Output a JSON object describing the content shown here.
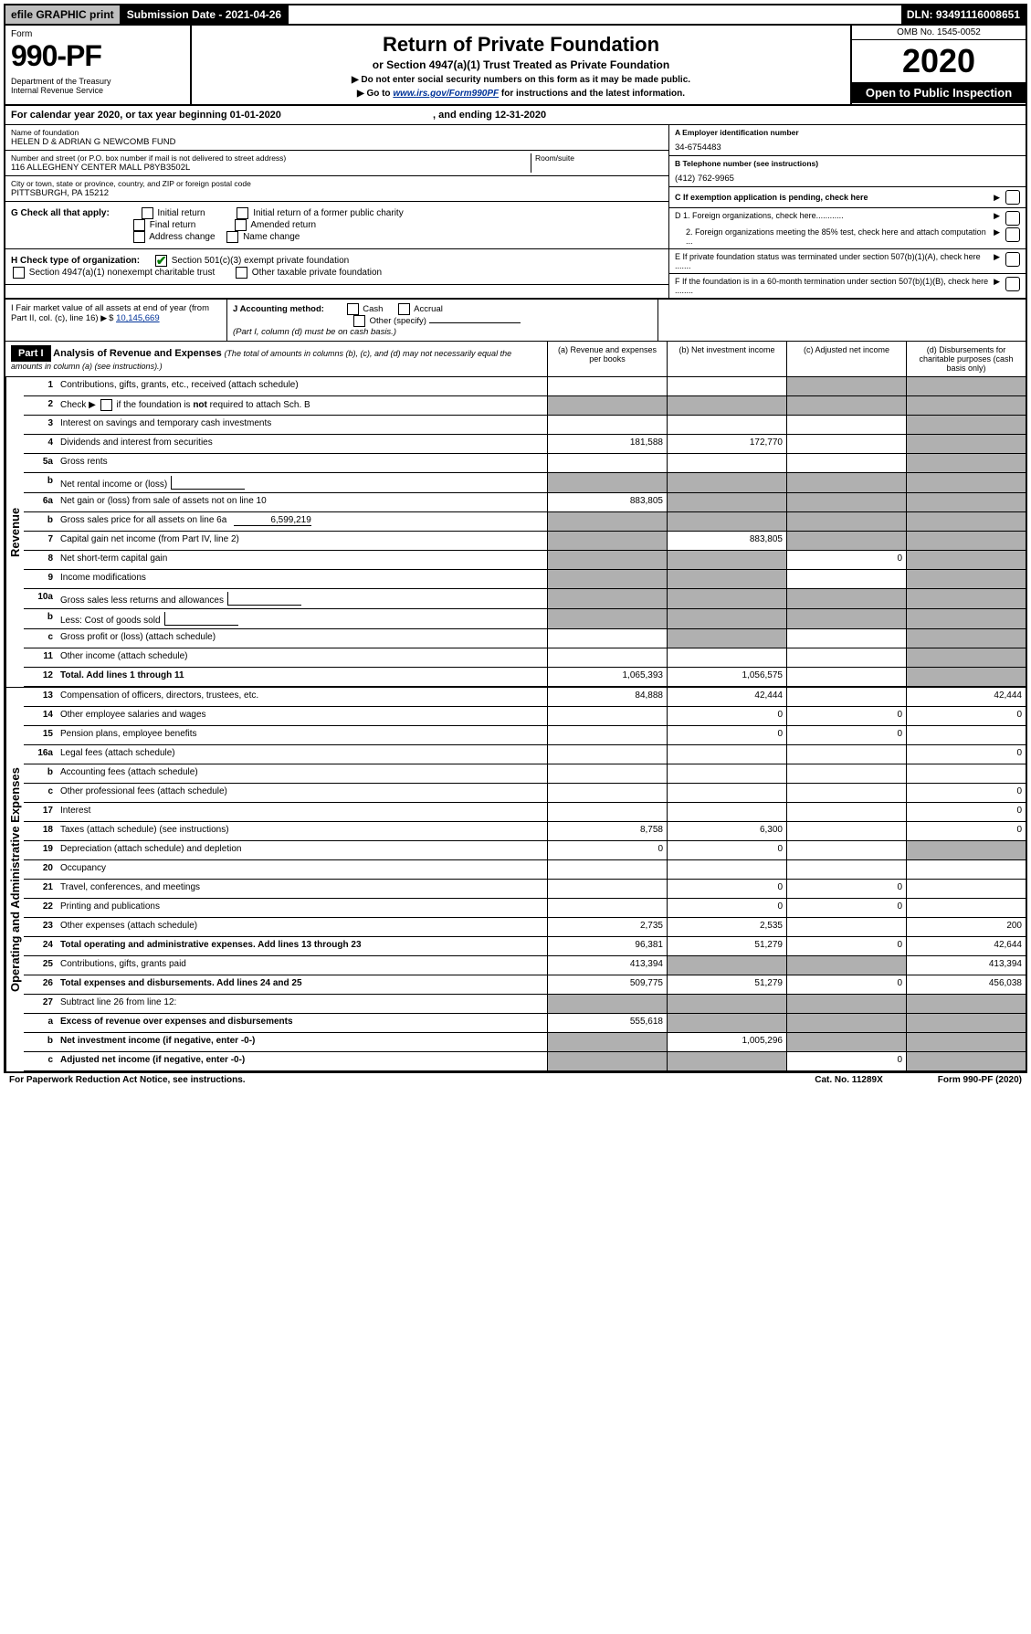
{
  "topbar": {
    "efile": "efile GRAPHIC print",
    "submission": "Submission Date - 2021-04-26",
    "dln": "DLN: 93491116008651"
  },
  "header": {
    "form_label": "Form",
    "form_number": "990-PF",
    "dept": "Department of the Treasury\nInternal Revenue Service",
    "title": "Return of Private Foundation",
    "subtitle": "or Section 4947(a)(1) Trust Treated as Private Foundation",
    "instr1": "▶ Do not enter social security numbers on this form as it may be made public.",
    "instr2_pre": "▶ Go to ",
    "instr2_link": "www.irs.gov/Form990PF",
    "instr2_post": " for instructions and the latest information.",
    "omb": "OMB No. 1545-0052",
    "year": "2020",
    "open": "Open to Public Inspection"
  },
  "cal_year": "For calendar year 2020, or tax year beginning 01-01-2020",
  "cal_year_end": ", and ending 12-31-2020",
  "foundation": {
    "name_label": "Name of foundation",
    "name": "HELEN D & ADRIAN G NEWCOMB FUND",
    "addr_label": "Number and street (or P.O. box number if mail is not delivered to street address)",
    "addr": "116 ALLEGHENY CENTER MALL P8YB3502L",
    "room_label": "Room/suite",
    "city_label": "City or town, state or province, country, and ZIP or foreign postal code",
    "city": "PITTSBURGH, PA  15212",
    "ein_label": "A Employer identification number",
    "ein": "34-6754483",
    "phone_label": "B Telephone number (see instructions)",
    "phone": "(412) 762-9965",
    "c_label": "C If exemption application is pending, check here",
    "d1": "D 1. Foreign organizations, check here............",
    "d2": "2. Foreign organizations meeting the 85% test, check here and attach computation ...",
    "e": "E  If private foundation status was terminated under section 507(b)(1)(A), check here .......",
    "f": "F  If the foundation is in a 60-month termination under section 507(b)(1)(B), check here ........"
  },
  "g": {
    "label": "G Check all that apply:",
    "opts": [
      "Initial return",
      "Initial return of a former public charity",
      "Final return",
      "Amended return",
      "Address change",
      "Name change"
    ]
  },
  "h": {
    "label": "H Check type of organization:",
    "opt1": "Section 501(c)(3) exempt private foundation",
    "opt2": "Section 4947(a)(1) nonexempt charitable trust",
    "opt3": "Other taxable private foundation"
  },
  "i": {
    "label": "I Fair market value of all assets at end of year (from Part II, col. (c), line 16)",
    "value": "10,145,669"
  },
  "j": {
    "label": "J Accounting method:",
    "opts": [
      "Cash",
      "Accrual"
    ],
    "other": "Other (specify)",
    "note": "(Part I, column (d) must be on cash basis.)"
  },
  "part1": {
    "label": "Part I",
    "title": "Analysis of Revenue and Expenses",
    "note": "(The total of amounts in columns (b), (c), and (d) may not necessarily equal the amounts in column (a) (see instructions).)",
    "col_a": "(a) Revenue and expenses per books",
    "col_b": "(b) Net investment income",
    "col_c": "(c) Adjusted net income",
    "col_d": "(d) Disbursements for charitable purposes (cash basis only)"
  },
  "sections": {
    "revenue": "Revenue",
    "opex": "Operating and Administrative Expenses"
  },
  "lines": [
    {
      "n": "1",
      "t": "Contributions, gifts, grants, etc., received (attach schedule)",
      "a": "",
      "b": "",
      "c": "s",
      "d": "s"
    },
    {
      "n": "2",
      "t": "Check ▶ ☐ if the foundation is not required to attach Sch. B",
      "dots": true,
      "a": "s",
      "b": "s",
      "c": "s",
      "d": "s"
    },
    {
      "n": "3",
      "t": "Interest on savings and temporary cash investments",
      "a": "",
      "b": "",
      "c": "",
      "d": "s"
    },
    {
      "n": "4",
      "t": "Dividends and interest from securities",
      "dots": true,
      "a": "181,588",
      "b": "172,770",
      "c": "",
      "d": "s"
    },
    {
      "n": "5a",
      "t": "Gross rents",
      "dots": true,
      "a": "",
      "b": "",
      "c": "",
      "d": "s"
    },
    {
      "n": "b",
      "t": "Net rental income or (loss)",
      "box": true,
      "a": "s",
      "b": "s",
      "c": "s",
      "d": "s"
    },
    {
      "n": "6a",
      "t": "Net gain or (loss) from sale of assets not on line 10",
      "a": "883,805",
      "b": "s",
      "c": "s",
      "d": "s"
    },
    {
      "n": "b",
      "t": "Gross sales price for all assets on line 6a",
      "inline_val": "6,599,219",
      "a": "s",
      "b": "s",
      "c": "s",
      "d": "s"
    },
    {
      "n": "7",
      "t": "Capital gain net income (from Part IV, line 2)",
      "dots": true,
      "a": "s",
      "b": "883,805",
      "c": "s",
      "d": "s"
    },
    {
      "n": "8",
      "t": "Net short-term capital gain",
      "dots": true,
      "a": "s",
      "b": "s",
      "c": "0",
      "d": "s"
    },
    {
      "n": "9",
      "t": "Income modifications",
      "dots": true,
      "a": "s",
      "b": "s",
      "c": "",
      "d": "s"
    },
    {
      "n": "10a",
      "t": "Gross sales less returns and allowances",
      "box": true,
      "a": "s",
      "b": "s",
      "c": "s",
      "d": "s"
    },
    {
      "n": "b",
      "t": "Less: Cost of goods sold",
      "dots": true,
      "box": true,
      "a": "s",
      "b": "s",
      "c": "s",
      "d": "s"
    },
    {
      "n": "c",
      "t": "Gross profit or (loss) (attach schedule)",
      "dots": true,
      "a": "",
      "b": "s",
      "c": "",
      "d": "s"
    },
    {
      "n": "11",
      "t": "Other income (attach schedule)",
      "dots": true,
      "a": "",
      "b": "",
      "c": "",
      "d": "s"
    },
    {
      "n": "12",
      "t": "Total. Add lines 1 through 11",
      "dots": true,
      "bold": true,
      "a": "1,065,393",
      "b": "1,056,575",
      "c": "",
      "d": "s"
    },
    {
      "n": "13",
      "t": "Compensation of officers, directors, trustees, etc.",
      "a": "84,888",
      "b": "42,444",
      "c": "",
      "d": "42,444"
    },
    {
      "n": "14",
      "t": "Other employee salaries and wages",
      "dots": true,
      "a": "",
      "b": "0",
      "c": "0",
      "d": "0"
    },
    {
      "n": "15",
      "t": "Pension plans, employee benefits",
      "dots": true,
      "a": "",
      "b": "0",
      "c": "0",
      "d": ""
    },
    {
      "n": "16a",
      "t": "Legal fees (attach schedule)",
      "dots": true,
      "a": "",
      "b": "",
      "c": "",
      "d": "0"
    },
    {
      "n": "b",
      "t": "Accounting fees (attach schedule)",
      "dots": true,
      "a": "",
      "b": "",
      "c": "",
      "d": ""
    },
    {
      "n": "c",
      "t": "Other professional fees (attach schedule)",
      "dots": true,
      "a": "",
      "b": "",
      "c": "",
      "d": "0"
    },
    {
      "n": "17",
      "t": "Interest",
      "dots": true,
      "a": "",
      "b": "",
      "c": "",
      "d": "0"
    },
    {
      "n": "18",
      "t": "Taxes (attach schedule) (see instructions)",
      "dots": true,
      "a": "8,758",
      "b": "6,300",
      "c": "",
      "d": "0"
    },
    {
      "n": "19",
      "t": "Depreciation (attach schedule) and depletion",
      "dots": true,
      "a": "0",
      "b": "0",
      "c": "",
      "d": "s"
    },
    {
      "n": "20",
      "t": "Occupancy",
      "dots": true,
      "a": "",
      "b": "",
      "c": "",
      "d": ""
    },
    {
      "n": "21",
      "t": "Travel, conferences, and meetings",
      "dots": true,
      "a": "",
      "b": "0",
      "c": "0",
      "d": ""
    },
    {
      "n": "22",
      "t": "Printing and publications",
      "dots": true,
      "a": "",
      "b": "0",
      "c": "0",
      "d": ""
    },
    {
      "n": "23",
      "t": "Other expenses (attach schedule)",
      "dots": true,
      "a": "2,735",
      "b": "2,535",
      "c": "",
      "d": "200"
    },
    {
      "n": "24",
      "t": "Total operating and administrative expenses. Add lines 13 through 23",
      "dots": true,
      "bold": true,
      "a": "96,381",
      "b": "51,279",
      "c": "0",
      "d": "42,644"
    },
    {
      "n": "25",
      "t": "Contributions, gifts, grants paid",
      "dots": true,
      "a": "413,394",
      "b": "s",
      "c": "s",
      "d": "413,394"
    },
    {
      "n": "26",
      "t": "Total expenses and disbursements. Add lines 24 and 25",
      "bold": true,
      "a": "509,775",
      "b": "51,279",
      "c": "0",
      "d": "456,038"
    },
    {
      "n": "27",
      "t": "Subtract line 26 from line 12:",
      "a": "s",
      "b": "s",
      "c": "s",
      "d": "s"
    },
    {
      "n": "a",
      "t": "Excess of revenue over expenses and disbursements",
      "bold": true,
      "a": "555,618",
      "b": "s",
      "c": "s",
      "d": "s"
    },
    {
      "n": "b",
      "t": "Net investment income (if negative, enter -0-)",
      "bold": true,
      "a": "s",
      "b": "1,005,296",
      "c": "s",
      "d": "s"
    },
    {
      "n": "c",
      "t": "Adjusted net income (if negative, enter -0-)",
      "dots": true,
      "bold": true,
      "a": "s",
      "b": "s",
      "c": "0",
      "d": "s"
    }
  ],
  "footer": {
    "left": "For Paperwork Reduction Act Notice, see instructions.",
    "mid": "Cat. No. 11289X",
    "right": "Form 990-PF (2020)"
  }
}
